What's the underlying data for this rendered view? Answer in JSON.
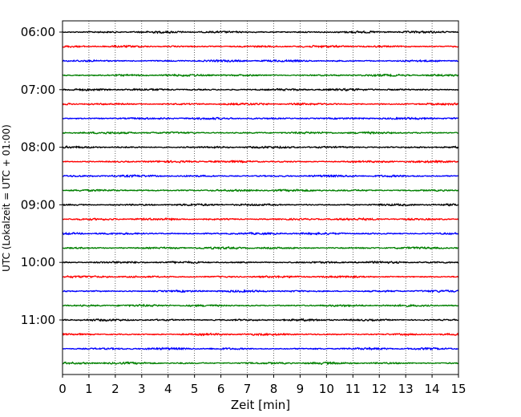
{
  "chart_data": {
    "type": "line",
    "title": "",
    "xlabel": "Zeit  [min]",
    "ylabel": "UTC (Lokalzeit = UTC + 01:00)",
    "xlim": [
      0,
      15
    ],
    "x_ticks": [
      "0",
      "1",
      "2",
      "3",
      "4",
      "5",
      "6",
      "7",
      "8",
      "9",
      "10",
      "11",
      "12",
      "13",
      "14",
      "15"
    ],
    "y_ticks": [
      "06:00",
      "07:00",
      "08:00",
      "09:00",
      "10:00",
      "11:00"
    ],
    "grid": "vertical dotted at each minute",
    "trace_interval_minutes": 15,
    "trace_start": "06:00",
    "trace_count": 24,
    "trace_colors": [
      "#000000",
      "#ff0000",
      "#0000ff",
      "#008000"
    ],
    "signal": "low-amplitude seismic noise on every trace"
  }
}
